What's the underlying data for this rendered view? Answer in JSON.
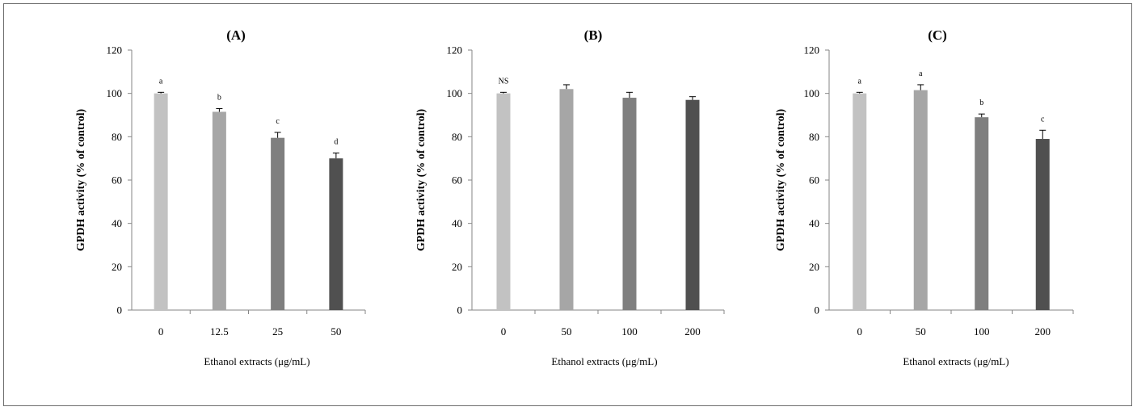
{
  "colors": {
    "bar1": "#c2c2c2",
    "bar2": "#a6a6a6",
    "bar3": "#7f7f7f",
    "bar4": "#505050",
    "axis": "#868686",
    "errorbar": "#000000"
  },
  "chart_data": [
    {
      "type": "bar",
      "title": "(A)",
      "categories": [
        "0",
        "12.5",
        "25",
        "50"
      ],
      "values": [
        100,
        91.5,
        79.5,
        70
      ],
      "errors": [
        0.5,
        1.5,
        2.5,
        2.5
      ],
      "significance": [
        "a",
        "b",
        "c",
        "d"
      ],
      "xlabel": "Ethanol extracts (μg/mL)",
      "ylabel": "GPDH activity (% of control)",
      "ylim": [
        0,
        120
      ],
      "yticks": [
        "0",
        "20",
        "40",
        "60",
        "80",
        "100",
        "120"
      ],
      "grid": false,
      "legend": "none"
    },
    {
      "type": "bar",
      "title": "(B)",
      "categories": [
        "0",
        "50",
        "100",
        "200"
      ],
      "values": [
        100,
        102,
        98,
        97
      ],
      "errors": [
        0.5,
        2,
        2.5,
        1.5
      ],
      "significance": [
        "NS",
        "",
        "",
        ""
      ],
      "xlabel": "Ethanol extracts (μg/mL)",
      "ylabel": "GPDH activity (% of control)",
      "ylim": [
        0,
        120
      ],
      "yticks": [
        "0",
        "20",
        "40",
        "60",
        "80",
        "100",
        "120"
      ],
      "grid": false,
      "legend": "none"
    },
    {
      "type": "bar",
      "title": "(C)",
      "categories": [
        "0",
        "50",
        "100",
        "200"
      ],
      "values": [
        100,
        101.5,
        89,
        79
      ],
      "errors": [
        0.5,
        2.5,
        1.5,
        4
      ],
      "significance": [
        "a",
        "a",
        "b",
        "c"
      ],
      "xlabel": "Ethanol extracts (μg/mL)",
      "ylabel": "GPDH activity (% of control)",
      "ylim": [
        0,
        120
      ],
      "yticks": [
        "0",
        "20",
        "40",
        "60",
        "80",
        "100",
        "120"
      ],
      "grid": false,
      "legend": "none"
    }
  ]
}
